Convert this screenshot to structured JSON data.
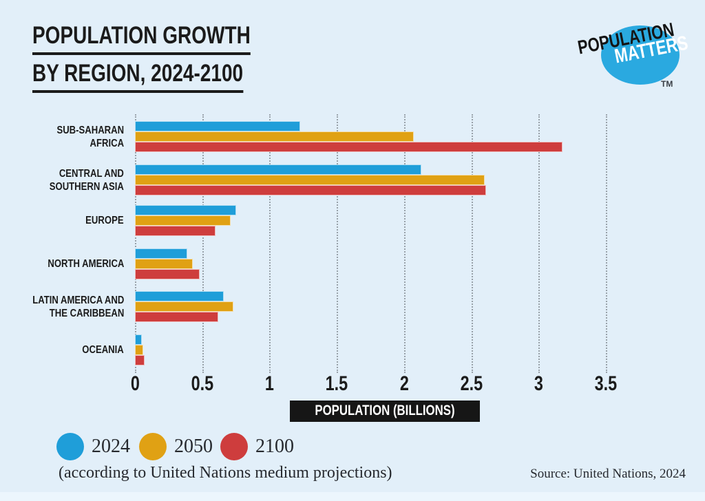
{
  "header": {
    "title_line1": "POPULATION GROWTH",
    "title_line2": "BY REGION, 2024-2100"
  },
  "logo": {
    "line1": "POPULATION",
    "line2": "MATTERS",
    "tm": "TM",
    "circle_color": "#2aa9e0"
  },
  "colors": {
    "background": "#e2eff9",
    "series_2024": "#1f9ed9",
    "series_2050": "#e0a114",
    "series_2100": "#ce3d3d",
    "grid": "#98a1a9",
    "text": "#1b1b1b",
    "axis_label_box": "#161616"
  },
  "chart_data": {
    "type": "bar",
    "orientation": "horizontal",
    "title": "POPULATION GROWTH BY REGION, 2024-2100",
    "categories": [
      "SUB-SAHARAN\nAFRICA",
      "CENTRAL AND\nSOUTHERN ASIA",
      "EUROPE",
      "NORTH AMERICA",
      "LATIN AMERICA AND\nTHE CARIBBEAN",
      "OCEANIA"
    ],
    "series": [
      {
        "name": "2024",
        "color": "#1f9ed9",
        "values": [
          1.23,
          2.13,
          0.75,
          0.39,
          0.66,
          0.05
        ]
      },
      {
        "name": "2050",
        "color": "#e0a114",
        "values": [
          2.07,
          2.6,
          0.71,
          0.43,
          0.73,
          0.06
        ]
      },
      {
        "name": "2100",
        "color": "#ce3d3d",
        "values": [
          3.18,
          2.61,
          0.6,
          0.48,
          0.62,
          0.07
        ]
      }
    ],
    "xlabel": "POPULATION (BILLIONS)",
    "x_tick_labels": [
      "0",
      "0.5",
      "1",
      "1.5",
      "2",
      "2.5",
      "3",
      "3.5"
    ],
    "x_ticks": [
      0,
      0.5,
      1,
      1.5,
      2,
      2.5,
      3,
      3.5
    ],
    "xlim": [
      0,
      3.5
    ],
    "grid": "dotted-vertical",
    "legend_position": "bottom-left"
  },
  "footer": {
    "note": "(according to United Nations medium projections)",
    "source": "Source: United Nations, 2024"
  }
}
